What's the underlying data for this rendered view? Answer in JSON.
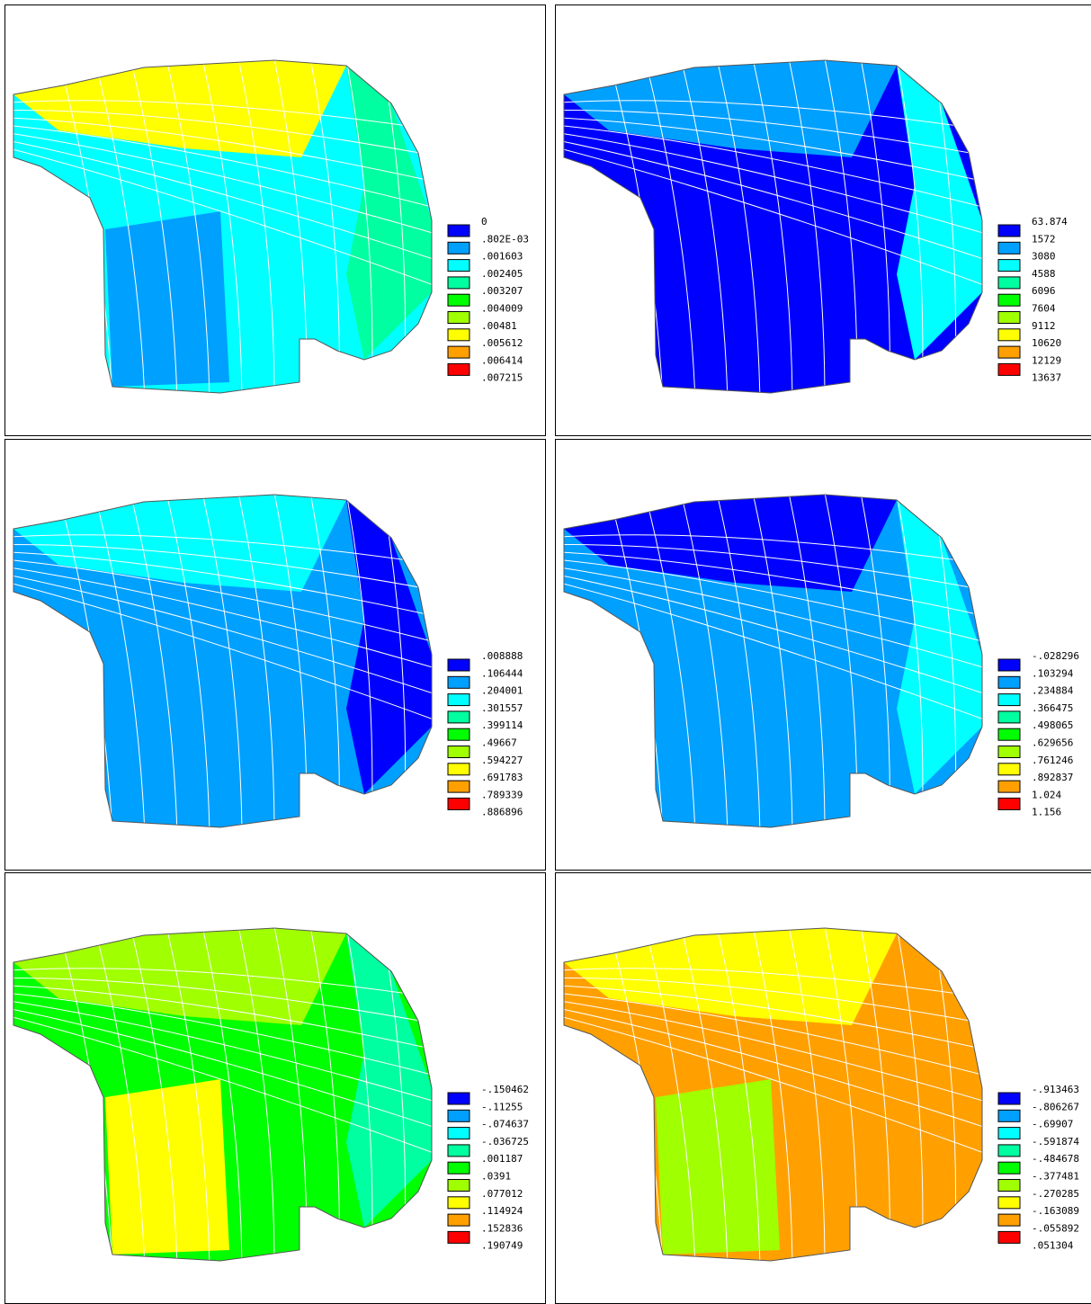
{
  "palette": [
    "#0000ff",
    "#00a0ff",
    "#00ffff",
    "#00ffa0",
    "#00ff00",
    "#a0ff00",
    "#ffff00",
    "#ffa000",
    "#ff0000"
  ],
  "panels": [
    {
      "legend": [
        "0",
        ".802E-03",
        ".001603",
        ".002405",
        ".003207",
        ".004009",
        ".00481",
        ".005612",
        ".006414",
        ".007215"
      ]
    },
    {
      "legend": [
        "63.874",
        "1572",
        "3080",
        "4588",
        "6096",
        "7604",
        "9112",
        "10620",
        "12129",
        "13637"
      ]
    },
    {
      "legend": [
        ".008888",
        ".106444",
        ".204001",
        ".301557",
        ".399114",
        ".49667",
        ".594227",
        ".691783",
        ".789339",
        ".886896"
      ]
    },
    {
      "legend": [
        "-.028296",
        ".103294",
        ".234884",
        ".366475",
        ".498065",
        ".629656",
        ".761246",
        ".892837",
        "1.024",
        "1.156"
      ]
    },
    {
      "legend": [
        "-.150462",
        "-.11255",
        "-.074637",
        "-.036725",
        ".001187",
        ".0391",
        ".077012",
        ".114924",
        ".152836",
        ".190749"
      ]
    },
    {
      "legend": [
        "-.913463",
        "-.806267",
        "-.69907",
        "-.591874",
        "-.484678",
        "-.377481",
        "-.270285",
        "-.163089",
        "-.055892",
        ".051304"
      ]
    }
  ]
}
